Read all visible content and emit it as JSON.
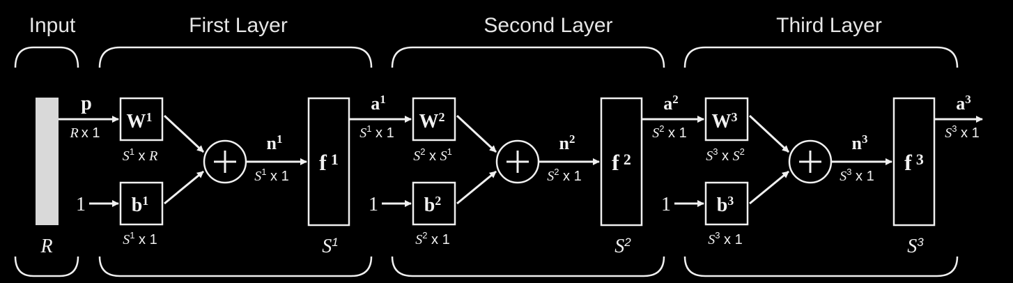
{
  "headers": {
    "input": "Input",
    "first": "First Layer",
    "second": "Second Layer",
    "third": "Third Layer"
  },
  "input": {
    "p": "p",
    "p_dim": "R x 1",
    "size": "R"
  },
  "layers": [
    {
      "w_base": "W",
      "w_sup": "1",
      "w_dim_a": "S",
      "w_dim_a_sup": "1",
      "w_dim_x": "x",
      "w_dim_b": "R",
      "w_dim_b_sup": "",
      "one": "1",
      "b_base": "b",
      "b_sup": "1",
      "b_dim": "S",
      "b_dim_sup": "1",
      "b_dim_tail": "x 1",
      "n_base": "n",
      "n_sup": "1",
      "n_dim": "S",
      "n_dim_sup": "1",
      "n_dim_tail": "x 1",
      "f_base": "f",
      "f_sup": "1",
      "size": "S",
      "size_sup": "1",
      "a_base": "a",
      "a_sup": "1",
      "a_dim": "S",
      "a_dim_sup": "1",
      "a_dim_tail": "x 1"
    },
    {
      "w_base": "W",
      "w_sup": "2",
      "w_dim_a": "S",
      "w_dim_a_sup": "2",
      "w_dim_x": "x",
      "w_dim_b": "S",
      "w_dim_b_sup": "1",
      "one": "1",
      "b_base": "b",
      "b_sup": "2",
      "b_dim": "S",
      "b_dim_sup": "2",
      "b_dim_tail": "x 1",
      "n_base": "n",
      "n_sup": "2",
      "n_dim": "S",
      "n_dim_sup": "2",
      "n_dim_tail": "x 1",
      "f_base": "f",
      "f_sup": "2",
      "size": "S",
      "size_sup": "2",
      "a_base": "a",
      "a_sup": "2",
      "a_dim": "S",
      "a_dim_sup": "2",
      "a_dim_tail": "x 1"
    },
    {
      "w_base": "W",
      "w_sup": "3",
      "w_dim_a": "S",
      "w_dim_a_sup": "3",
      "w_dim_x": "x",
      "w_dim_b": "S",
      "w_dim_b_sup": "2",
      "one": "1",
      "b_base": "b",
      "b_sup": "3",
      "b_dim": "S",
      "b_dim_sup": "3",
      "b_dim_tail": "x 1",
      "n_base": "n",
      "n_sup": "3",
      "n_dim": "S",
      "n_dim_sup": "3",
      "n_dim_tail": "x 1",
      "f_base": "f",
      "f_sup": "3",
      "size": "S",
      "size_sup": "3",
      "a_base": "a",
      "a_sup": "3",
      "a_dim": "S",
      "a_dim_sup": "3",
      "a_dim_tail": "x 1"
    }
  ],
  "colors": {
    "background": "#000000",
    "stroke": "#f0f0f0",
    "input_bar": "#d9d9d9"
  }
}
